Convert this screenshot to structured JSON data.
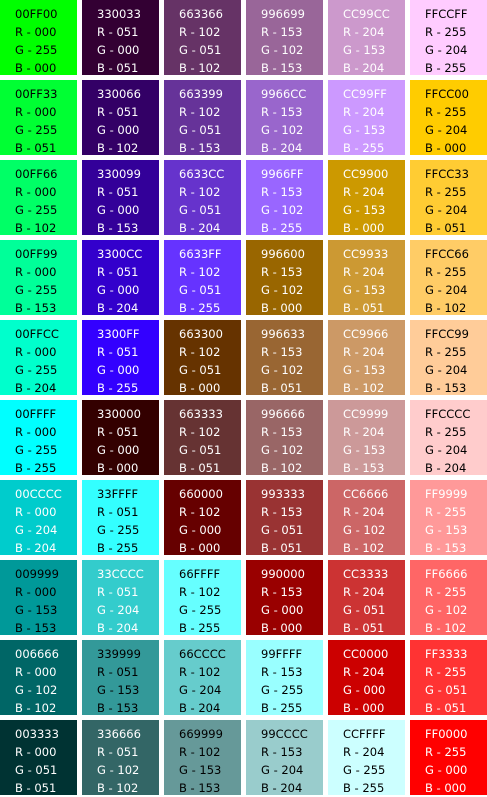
{
  "swatches": [
    [
      {
        "hex": "00FF00",
        "r": "R - 000",
        "g": "G - 255",
        "b": "B - 000",
        "color": "#00FF00",
        "text": "#000000"
      },
      {
        "hex": "330033",
        "r": "R - 051",
        "g": "G - 000",
        "b": "B - 051",
        "color": "#330033",
        "text": "#FFFFFF"
      },
      {
        "hex": "663366",
        "r": "R - 102",
        "g": "G - 051",
        "b": "B - 102",
        "color": "#663366",
        "text": "#FFFFFF"
      },
      {
        "hex": "996699",
        "r": "R - 153",
        "g": "G - 102",
        "b": "B - 153",
        "color": "#996699",
        "text": "#FFFFFF"
      },
      {
        "hex": "CC99CC",
        "r": "R - 204",
        "g": "G - 153",
        "b": "B - 204",
        "color": "#CC99CC",
        "text": "#FFFFFF"
      },
      {
        "hex": "FFCCFF",
        "r": "R - 255",
        "g": "G - 204",
        "b": "B - 255",
        "color": "#FFCCFF",
        "text": "#000000"
      }
    ],
    [
      {
        "hex": "00FF33",
        "r": "R - 000",
        "g": "G - 255",
        "b": "B - 051",
        "color": "#00FF33",
        "text": "#000000"
      },
      {
        "hex": "330066",
        "r": "R - 051",
        "g": "G - 000",
        "b": "B - 102",
        "color": "#330066",
        "text": "#FFFFFF"
      },
      {
        "hex": "663399",
        "r": "R - 102",
        "g": "G - 051",
        "b": "B - 153",
        "color": "#663399",
        "text": "#FFFFFF"
      },
      {
        "hex": "9966CC",
        "r": "R - 153",
        "g": "G - 102",
        "b": "B - 204",
        "color": "#9966CC",
        "text": "#FFFFFF"
      },
      {
        "hex": "CC99FF",
        "r": "R - 204",
        "g": "G - 153",
        "b": "B - 255",
        "color": "#CC99FF",
        "text": "#FFFFFF"
      },
      {
        "hex": "FFCC00",
        "r": "R - 255",
        "g": "G - 204",
        "b": "B - 000",
        "color": "#FFCC00",
        "text": "#000000"
      }
    ],
    [
      {
        "hex": "00FF66",
        "r": "R - 000",
        "g": "G - 255",
        "b": "B - 102",
        "color": "#00FF66",
        "text": "#000000"
      },
      {
        "hex": "330099",
        "r": "R - 051",
        "g": "G - 000",
        "b": "B - 153",
        "color": "#330099",
        "text": "#FFFFFF"
      },
      {
        "hex": "6633CC",
        "r": "R - 102",
        "g": "G - 051",
        "b": "B - 204",
        "color": "#6633CC",
        "text": "#FFFFFF"
      },
      {
        "hex": "9966FF",
        "r": "R - 153",
        "g": "G - 102",
        "b": "B - 255",
        "color": "#9966FF",
        "text": "#FFFFFF"
      },
      {
        "hex": "CC9900",
        "r": "R - 204",
        "g": "G - 153",
        "b": "B - 000",
        "color": "#CC9900",
        "text": "#FFFFFF"
      },
      {
        "hex": "FFCC33",
        "r": "R - 255",
        "g": "G - 204",
        "b": "B - 051",
        "color": "#FFCC33",
        "text": "#000000"
      }
    ],
    [
      {
        "hex": "00FF99",
        "r": "R - 000",
        "g": "G - 255",
        "b": "B - 153",
        "color": "#00FF99",
        "text": "#000000"
      },
      {
        "hex": "3300CC",
        "r": "R - 051",
        "g": "G - 000",
        "b": "B - 204",
        "color": "#3300CC",
        "text": "#FFFFFF"
      },
      {
        "hex": "6633FF",
        "r": "R - 102",
        "g": "G - 051",
        "b": "B - 255",
        "color": "#6633FF",
        "text": "#FFFFFF"
      },
      {
        "hex": "996600",
        "r": "R - 153",
        "g": "G - 102",
        "b": "B - 000",
        "color": "#996600",
        "text": "#FFFFFF"
      },
      {
        "hex": "CC9933",
        "r": "R - 204",
        "g": "G - 153",
        "b": "B - 051",
        "color": "#CC9933",
        "text": "#FFFFFF"
      },
      {
        "hex": "FFCC66",
        "r": "R - 255",
        "g": "G - 204",
        "b": "B - 102",
        "color": "#FFCC66",
        "text": "#000000"
      }
    ],
    [
      {
        "hex": "00FFCC",
        "r": "R - 000",
        "g": "G - 255",
        "b": "B - 204",
        "color": "#00FFCC",
        "text": "#000000"
      },
      {
        "hex": "3300FF",
        "r": "R - 051",
        "g": "G - 000",
        "b": "B - 255",
        "color": "#3300FF",
        "text": "#FFFFFF"
      },
      {
        "hex": "663300",
        "r": "R - 102",
        "g": "G - 051",
        "b": "B - 000",
        "color": "#663300",
        "text": "#FFFFFF"
      },
      {
        "hex": "996633",
        "r": "R - 153",
        "g": "G - 102",
        "b": "B - 051",
        "color": "#996633",
        "text": "#FFFFFF"
      },
      {
        "hex": "CC9966",
        "r": "R - 204",
        "g": "G - 153",
        "b": "B - 102",
        "color": "#CC9966",
        "text": "#FFFFFF"
      },
      {
        "hex": "FFCC99",
        "r": "R - 255",
        "g": "G - 204",
        "b": "B - 153",
        "color": "#FFCC99",
        "text": "#000000"
      }
    ],
    [
      {
        "hex": "00FFFF",
        "r": "R - 000",
        "g": "G - 255",
        "b": "B - 255",
        "color": "#00FFFF",
        "text": "#000000"
      },
      {
        "hex": "330000",
        "r": "R - 051",
        "g": "G - 000",
        "b": "B - 000",
        "color": "#330000",
        "text": "#FFFFFF"
      },
      {
        "hex": "663333",
        "r": "R - 102",
        "g": "G - 051",
        "b": "B - 051",
        "color": "#663333",
        "text": "#FFFFFF"
      },
      {
        "hex": "996666",
        "r": "R - 153",
        "g": "G - 102",
        "b": "B - 102",
        "color": "#996666",
        "text": "#FFFFFF"
      },
      {
        "hex": "CC9999",
        "r": "R - 204",
        "g": "G - 153",
        "b": "B - 153",
        "color": "#CC9999",
        "text": "#FFFFFF"
      },
      {
        "hex": "FFCCCC",
        "r": "R - 255",
        "g": "G - 204",
        "b": "B - 204",
        "color": "#FFCCCC",
        "text": "#000000"
      }
    ],
    [
      {
        "hex": "00CCCC",
        "r": "R - 000",
        "g": "G - 204",
        "b": "B - 204",
        "color": "#00CCCC",
        "text": "#FFFFFF"
      },
      {
        "hex": "33FFFF",
        "r": "R - 051",
        "g": "G - 255",
        "b": "B - 255",
        "color": "#33FFFF",
        "text": "#000000"
      },
      {
        "hex": "660000",
        "r": "R - 102",
        "g": "G - 000",
        "b": "B - 000",
        "color": "#660000",
        "text": "#FFFFFF"
      },
      {
        "hex": "993333",
        "r": "R - 153",
        "g": "G - 051",
        "b": "B - 051",
        "color": "#993333",
        "text": "#FFFFFF"
      },
      {
        "hex": "CC6666",
        "r": "R - 204",
        "g": "G - 102",
        "b": "B - 102",
        "color": "#CC6666",
        "text": "#FFFFFF"
      },
      {
        "hex": "FF9999",
        "r": "R - 255",
        "g": "G - 153",
        "b": "B - 153",
        "color": "#FF9999",
        "text": "#FFFFFF"
      }
    ],
    [
      {
        "hex": "009999",
        "r": "R - 000",
        "g": "G - 153",
        "b": "B - 153",
        "color": "#009999",
        "text": "#000000"
      },
      {
        "hex": "33CCCC",
        "r": "R - 051",
        "g": "G - 204",
        "b": "B - 204",
        "color": "#33CCCC",
        "text": "#FFFFFF"
      },
      {
        "hex": "66FFFF",
        "r": "R - 102",
        "g": "G - 255",
        "b": "B - 255",
        "color": "#66FFFF",
        "text": "#000000"
      },
      {
        "hex": "990000",
        "r": "R - 153",
        "g": "G - 000",
        "b": "B - 000",
        "color": "#990000",
        "text": "#FFFFFF"
      },
      {
        "hex": "CC3333",
        "r": "R - 204",
        "g": "G - 051",
        "b": "B - 051",
        "color": "#CC3333",
        "text": "#FFFFFF"
      },
      {
        "hex": "FF6666",
        "r": "R - 255",
        "g": "G - 102",
        "b": "B - 102",
        "color": "#FF6666",
        "text": "#FFFFFF"
      }
    ],
    [
      {
        "hex": "006666",
        "r": "R - 000",
        "g": "G - 102",
        "b": "B - 102",
        "color": "#006666",
        "text": "#FFFFFF"
      },
      {
        "hex": "339999",
        "r": "R - 051",
        "g": "G - 153",
        "b": "B - 153",
        "color": "#339999",
        "text": "#000000"
      },
      {
        "hex": "66CCCC",
        "r": "R - 102",
        "g": "G - 204",
        "b": "B - 204",
        "color": "#66CCCC",
        "text": "#000000"
      },
      {
        "hex": "99FFFF",
        "r": "R - 153",
        "g": "G - 255",
        "b": "B - 255",
        "color": "#99FFFF",
        "text": "#000000"
      },
      {
        "hex": "CC0000",
        "r": "R - 204",
        "g": "G - 000",
        "b": "B - 000",
        "color": "#CC0000",
        "text": "#FFFFFF"
      },
      {
        "hex": "FF3333",
        "r": "R - 255",
        "g": "G - 051",
        "b": "B - 051",
        "color": "#FF3333",
        "text": "#FFFFFF"
      }
    ],
    [
      {
        "hex": "003333",
        "r": "R - 000",
        "g": "G - 051",
        "b": "B - 051",
        "color": "#003333",
        "text": "#FFFFFF"
      },
      {
        "hex": "336666",
        "r": "R - 051",
        "g": "G - 102",
        "b": "B - 102",
        "color": "#336666",
        "text": "#FFFFFF"
      },
      {
        "hex": "669999",
        "r": "R - 102",
        "g": "G - 153",
        "b": "B - 153",
        "color": "#669999",
        "text": "#000000"
      },
      {
        "hex": "99CCCC",
        "r": "R - 153",
        "g": "G - 204",
        "b": "B - 204",
        "color": "#99CCCC",
        "text": "#000000"
      },
      {
        "hex": "CCFFFF",
        "r": "R - 204",
        "g": "G - 255",
        "b": "B - 255",
        "color": "#CCFFFF",
        "text": "#000000"
      },
      {
        "hex": "FF0000",
        "r": "R - 255",
        "g": "G - 000",
        "b": "B - 000",
        "color": "#FF0000",
        "text": "#FFFFFF"
      }
    ]
  ]
}
